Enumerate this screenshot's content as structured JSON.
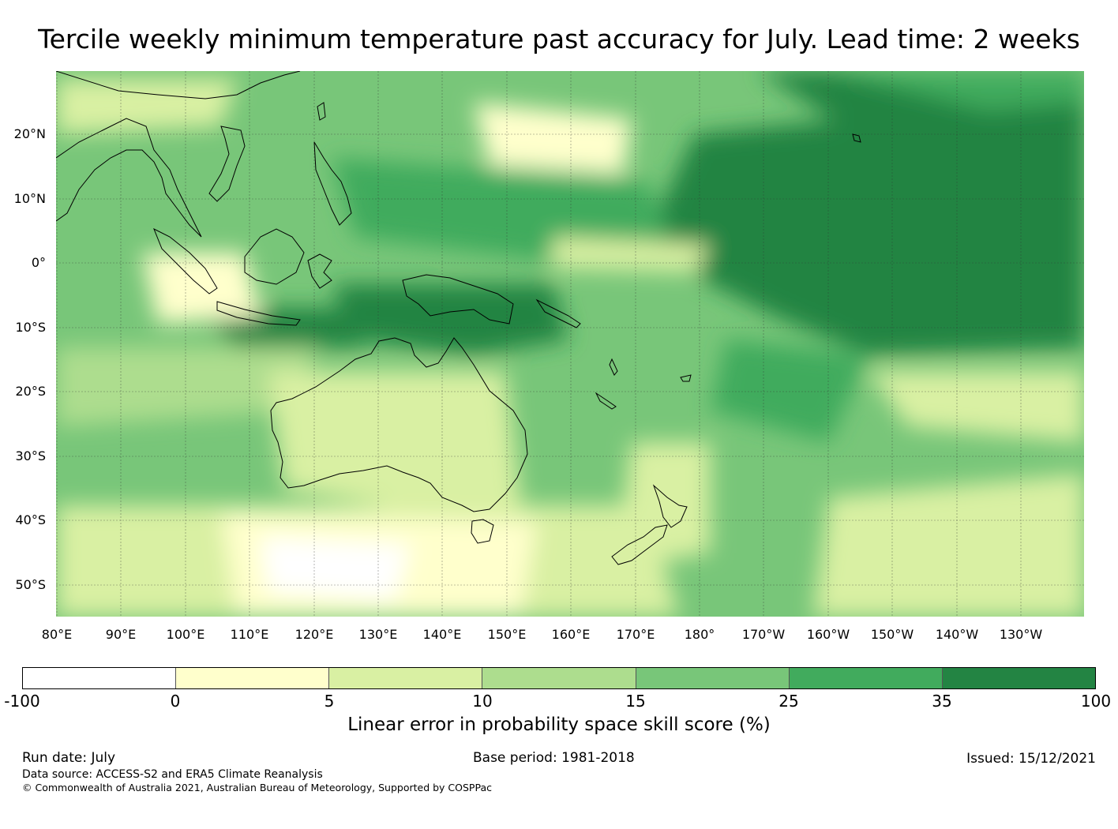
{
  "title": "Tercile weekly minimum temperature past accuracy for July. Lead time: 2 weeks",
  "map": {
    "lat_labels": [
      "20°N",
      "10°N",
      "0°",
      "10°S",
      "20°S",
      "30°S",
      "40°S",
      "50°S"
    ],
    "lon_labels": [
      "80°E",
      "90°E",
      "100°E",
      "110°E",
      "120°E",
      "130°E",
      "140°E",
      "150°E",
      "160°E",
      "170°E",
      "180°",
      "170°W",
      "160°W",
      "150°W",
      "140°W",
      "130°W"
    ]
  },
  "colorbar": {
    "title": "Linear error in probability space skill score (%)",
    "ticks": [
      "-100",
      "0",
      "5",
      "10",
      "15",
      "25",
      "35",
      "100"
    ],
    "colors": [
      "#ffffff",
      "#ffffcc",
      "#d9f0a3",
      "#addd8e",
      "#78c679",
      "#41ab5d",
      "#238443"
    ]
  },
  "footer": {
    "run_date": "Run date: July",
    "base_period": "Base period: 1981-2018",
    "issued": "Issued: 15/12/2021",
    "data_source": "Data source: ACCESS-S2 and ERA5 Climate Reanalysis",
    "copyright": "© Commonwealth of Australia 2021, Australian Bureau of Meteorology, Supported by COSPPac"
  }
}
